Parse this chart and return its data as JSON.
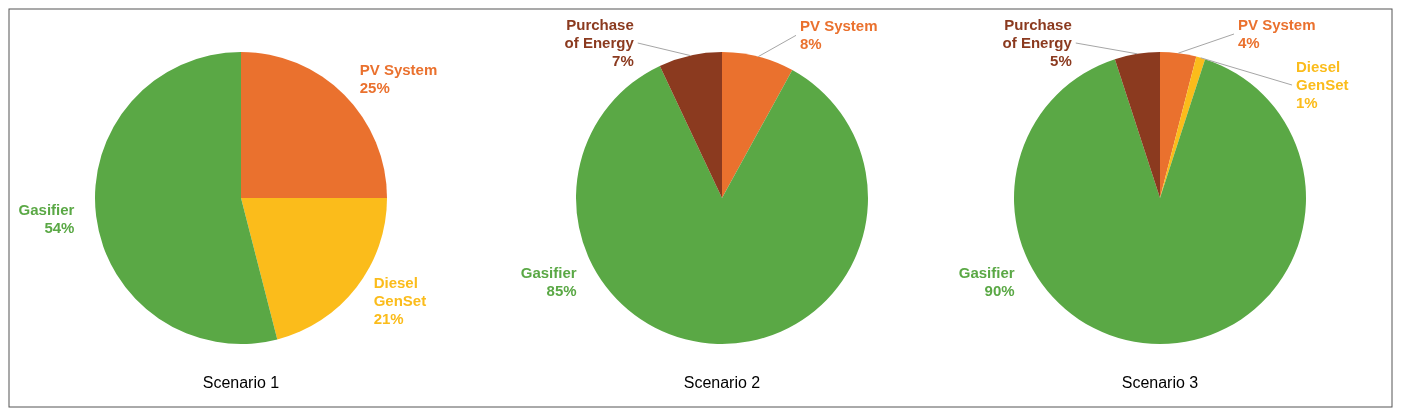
{
  "chart_data": [
    {
      "type": "pie",
      "title": "Scenario 1",
      "categories": [
        "PV System",
        "Diesel GenSet",
        "Gasifier"
      ],
      "values": [
        25,
        21,
        54
      ],
      "colors": [
        "#ea712e",
        "#fbbc1b",
        "#5aa845"
      ],
      "value_labels": [
        "25%",
        "21%",
        "54%"
      ]
    },
    {
      "type": "pie",
      "title": "Scenario 2",
      "categories": [
        "PV System",
        "Gasifier",
        "Purchase of Energy"
      ],
      "values": [
        8,
        85,
        7
      ],
      "colors": [
        "#ea712e",
        "#5aa845",
        "#8b3a1f"
      ],
      "value_labels": [
        "8%",
        "85%",
        "7%"
      ]
    },
    {
      "type": "pie",
      "title": "Scenario 3",
      "categories": [
        "PV System",
        "Diesel GenSet",
        "Gasifier",
        "Purchase of Energy"
      ],
      "values": [
        4,
        1,
        90,
        5
      ],
      "colors": [
        "#ea712e",
        "#fbbc1b",
        "#5aa845",
        "#8b3a1f"
      ],
      "value_labels": [
        "4%",
        "1%",
        "90%",
        "5%"
      ]
    }
  ]
}
